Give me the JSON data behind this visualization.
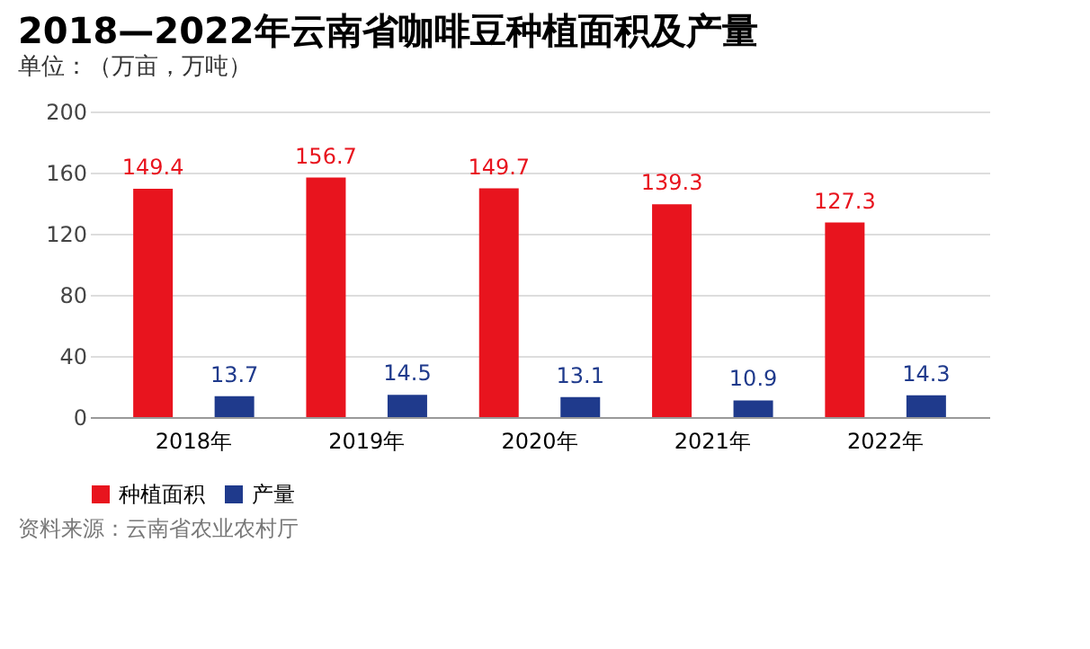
{
  "chart_data": {
    "type": "bar",
    "title": "2018—2022年云南省咖啡豆种植面积及产量",
    "subtitle": "单位：（万亩，万吨）",
    "categories": [
      "2018年",
      "2019年",
      "2020年",
      "2021年",
      "2022年"
    ],
    "series": [
      {
        "name": "种植面积",
        "color": "#e8141e",
        "values": [
          149.4,
          156.7,
          149.7,
          139.3,
          127.3
        ]
      },
      {
        "name": "产量",
        "color": "#1f3a8c",
        "values": [
          13.7,
          14.5,
          13.1,
          10.9,
          14.3
        ]
      }
    ],
    "ylim": [
      0,
      200
    ],
    "yticks": [
      0,
      40,
      80,
      120,
      160,
      200
    ],
    "grid": "y",
    "legend": "bottom",
    "data_labels": true,
    "annotations": [
      "资料来源：云南省农业农村厅"
    ]
  }
}
